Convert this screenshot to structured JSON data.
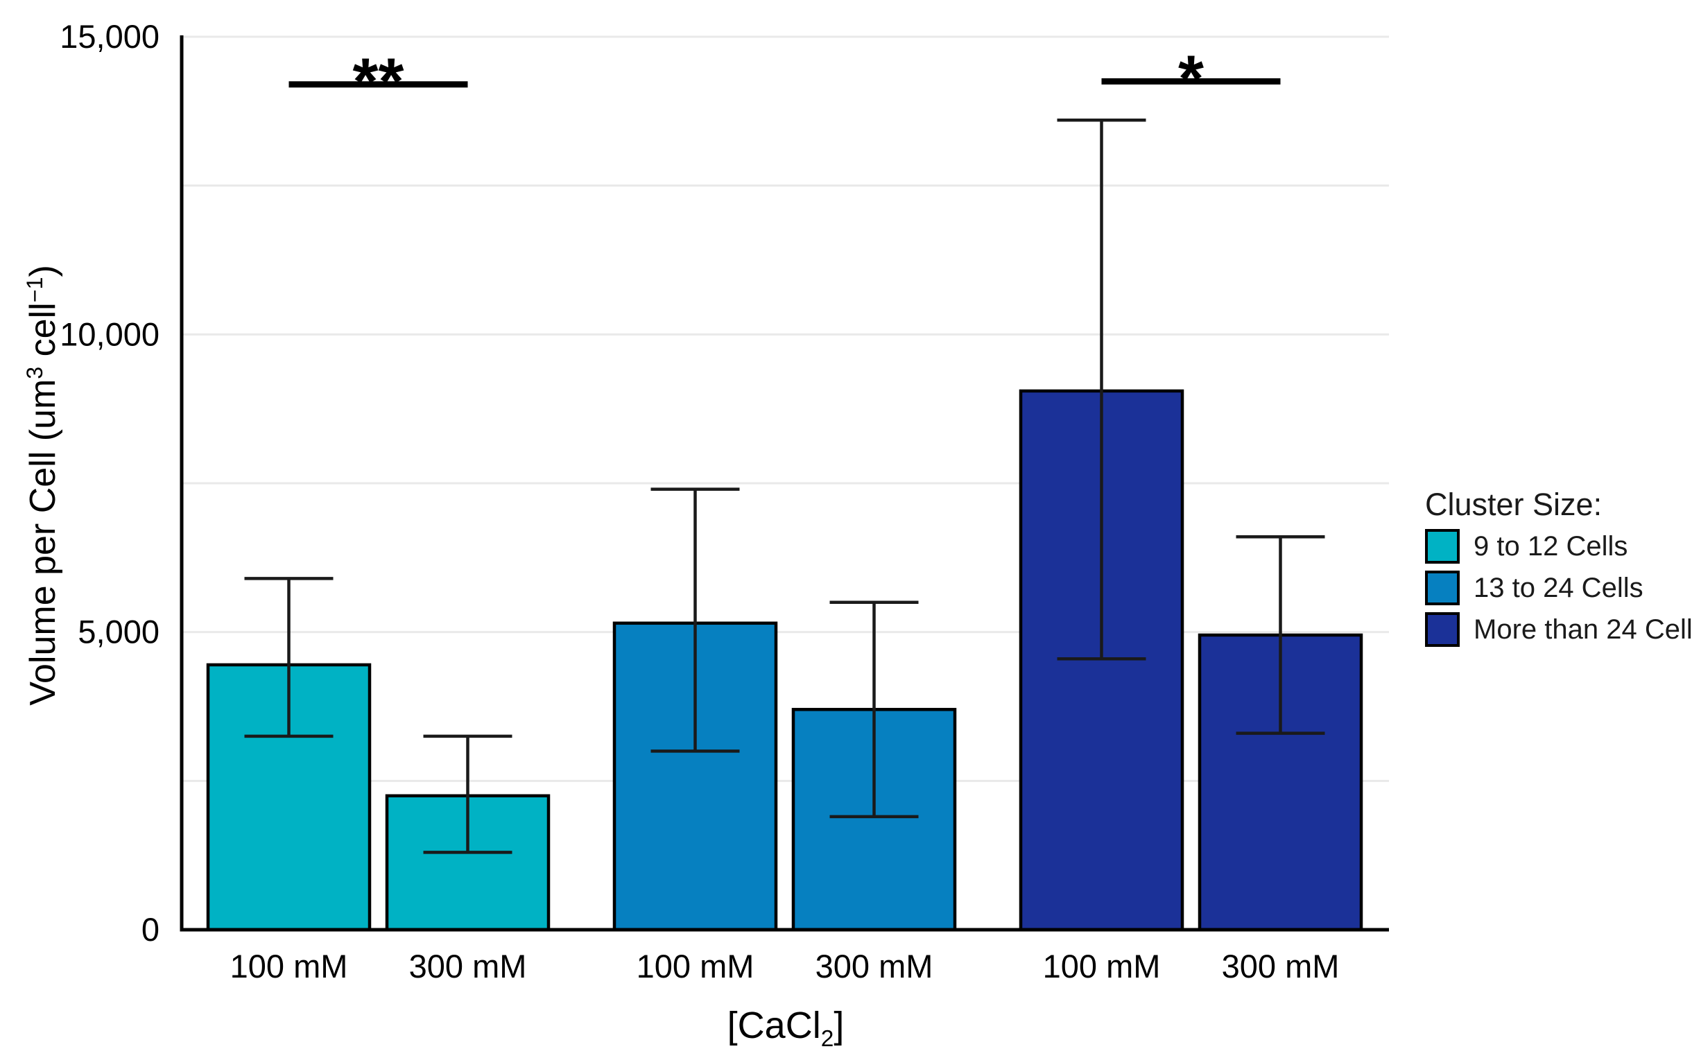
{
  "chart_data": {
    "type": "bar",
    "title": "",
    "xlabel": "[CaCl₂]",
    "ylabel": "Volume per Cell (um³ cell⁻¹)",
    "xlabel_parts": {
      "pre": "[CaCl",
      "sub": "2",
      "post": "]"
    },
    "ylabel_parts": {
      "pre": "Volume per Cell (um",
      "sup1": "3",
      "mid": " cell",
      "sup2": "−1",
      "post": ")"
    },
    "ylim": [
      0,
      15000
    ],
    "ytick_step": 5000,
    "ytick_labels": [
      "0",
      "5,000",
      "10,000",
      "15,000"
    ],
    "grid_step": 2500,
    "grid_on": true,
    "categories": [
      "100 mM",
      "300 mM"
    ],
    "legend": {
      "title": "Cluster Size:",
      "position": "right"
    },
    "series": [
      {
        "name": "9 to 12 Cells",
        "color": "#00b2c4",
        "values": [
          4450,
          2250
        ],
        "err_high": [
          5900,
          3250
        ],
        "err_low": [
          3250,
          1300
        ]
      },
      {
        "name": "13 to 24 Cells",
        "color": "#0680c0",
        "values": [
          5150,
          3700
        ],
        "err_high": [
          7400,
          5500
        ],
        "err_low": [
          3000,
          1900
        ]
      },
      {
        "name": "More than 24 Cells",
        "color": "#1b3198",
        "values": [
          9050,
          4950
        ],
        "err_high": [
          13600,
          6600
        ],
        "err_low": [
          4550,
          3300
        ]
      }
    ],
    "annotations": [
      {
        "series_index": 0,
        "label": "**",
        "line_y": 14200
      },
      {
        "series_index": 2,
        "label": "*",
        "line_y": 14250
      }
    ]
  },
  "colors": {
    "background": "#ffffff",
    "axis": "#000000",
    "gridline": "#e9e9e9",
    "error_bar": "#1a1a1a",
    "text": "#000000"
  }
}
